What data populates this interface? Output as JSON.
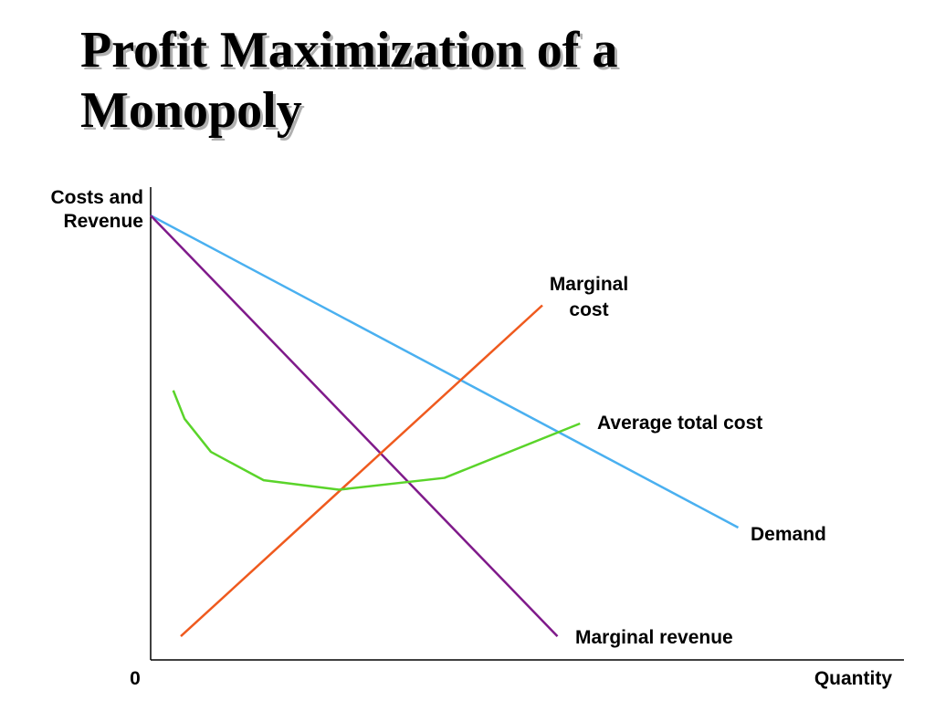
{
  "title": {
    "line1": "Profit Maximization of a",
    "line2": "Monopoly"
  },
  "chart_data": {
    "type": "line",
    "ylabel": [
      "Costs and",
      "Revenue"
    ],
    "xlabel": "Quantity",
    "origin_label": "0",
    "xlim": [
      0,
      100
    ],
    "ylim": [
      0,
      100
    ],
    "grid": false,
    "series": [
      {
        "name": "Demand",
        "label_lines": [
          "Demand"
        ],
        "color": "#4ab0f0",
        "points": [
          [
            0,
            94
          ],
          [
            78,
            28
          ]
        ]
      },
      {
        "name": "Marginal revenue",
        "label_lines": [
          "Marginal revenue"
        ],
        "color": "#7f1a8a",
        "points": [
          [
            0,
            94
          ],
          [
            54,
            5
          ]
        ]
      },
      {
        "name": "Marginal cost",
        "label_lines": [
          "Marginal",
          "cost"
        ],
        "color": "#ef5a1e",
        "points": [
          [
            4,
            5
          ],
          [
            52,
            75
          ]
        ]
      },
      {
        "name": "Average total cost",
        "label_lines": [
          "Average total cost"
        ],
        "color": "#5ad42a",
        "points": [
          [
            3,
            57
          ],
          [
            4.5,
            51
          ],
          [
            8,
            44
          ],
          [
            15,
            38
          ],
          [
            25,
            36
          ],
          [
            39,
            38.5
          ],
          [
            57,
            50
          ]
        ]
      }
    ]
  }
}
